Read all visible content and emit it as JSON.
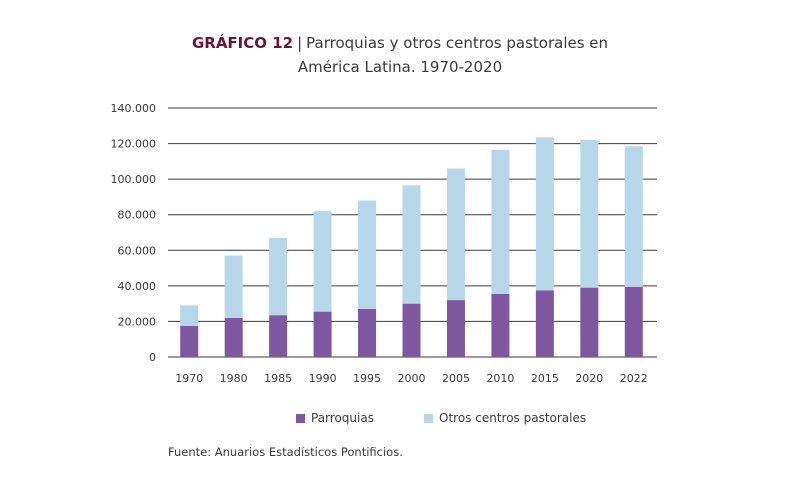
{
  "header": {
    "label": "GRÁFICO 12",
    "separator": "|",
    "title_line1": "Parroquias y otros centros pastorales en",
    "title_line2": "América Latina. 1970-2020"
  },
  "legend": {
    "parroquias": "Parroquias",
    "otros": "Otros centros pastorales"
  },
  "source": "Fuente: Anuarios Estadísticos Pontificios.",
  "colors": {
    "parroquias": "#7f57a0",
    "otros": "#b6d7ea",
    "title_accent": "#6b1536",
    "grid": "#3a3a3a"
  },
  "chart_data": {
    "type": "bar",
    "stacked": true,
    "title": "Parroquias y otros centros pastorales en América Latina. 1970-2020",
    "xlabel": "",
    "ylabel": "",
    "categories": [
      "1970",
      "1980",
      "1985",
      "1990",
      "1995",
      "2000",
      "2005",
      "2010",
      "2015",
      "2020",
      "2022"
    ],
    "series": [
      {
        "name": "Parroquias",
        "values": [
          17500,
          22000,
          23500,
          25500,
          27000,
          30000,
          32000,
          35500,
          37500,
          39000,
          39500
        ]
      },
      {
        "name": "Otros centros pastorales",
        "values": [
          11500,
          35000,
          43500,
          56500,
          61000,
          66500,
          74000,
          81000,
          86000,
          83000,
          79000
        ]
      }
    ],
    "ylim": [
      0,
      140000
    ],
    "yticks": [
      0,
      20000,
      40000,
      60000,
      80000,
      100000,
      120000,
      140000
    ],
    "ytick_labels": [
      "0",
      "20.000",
      "40.000",
      "60.000",
      "80.000",
      "100.000",
      "120.000",
      "140.000"
    ],
    "grid": true,
    "legend_position": "bottom"
  }
}
